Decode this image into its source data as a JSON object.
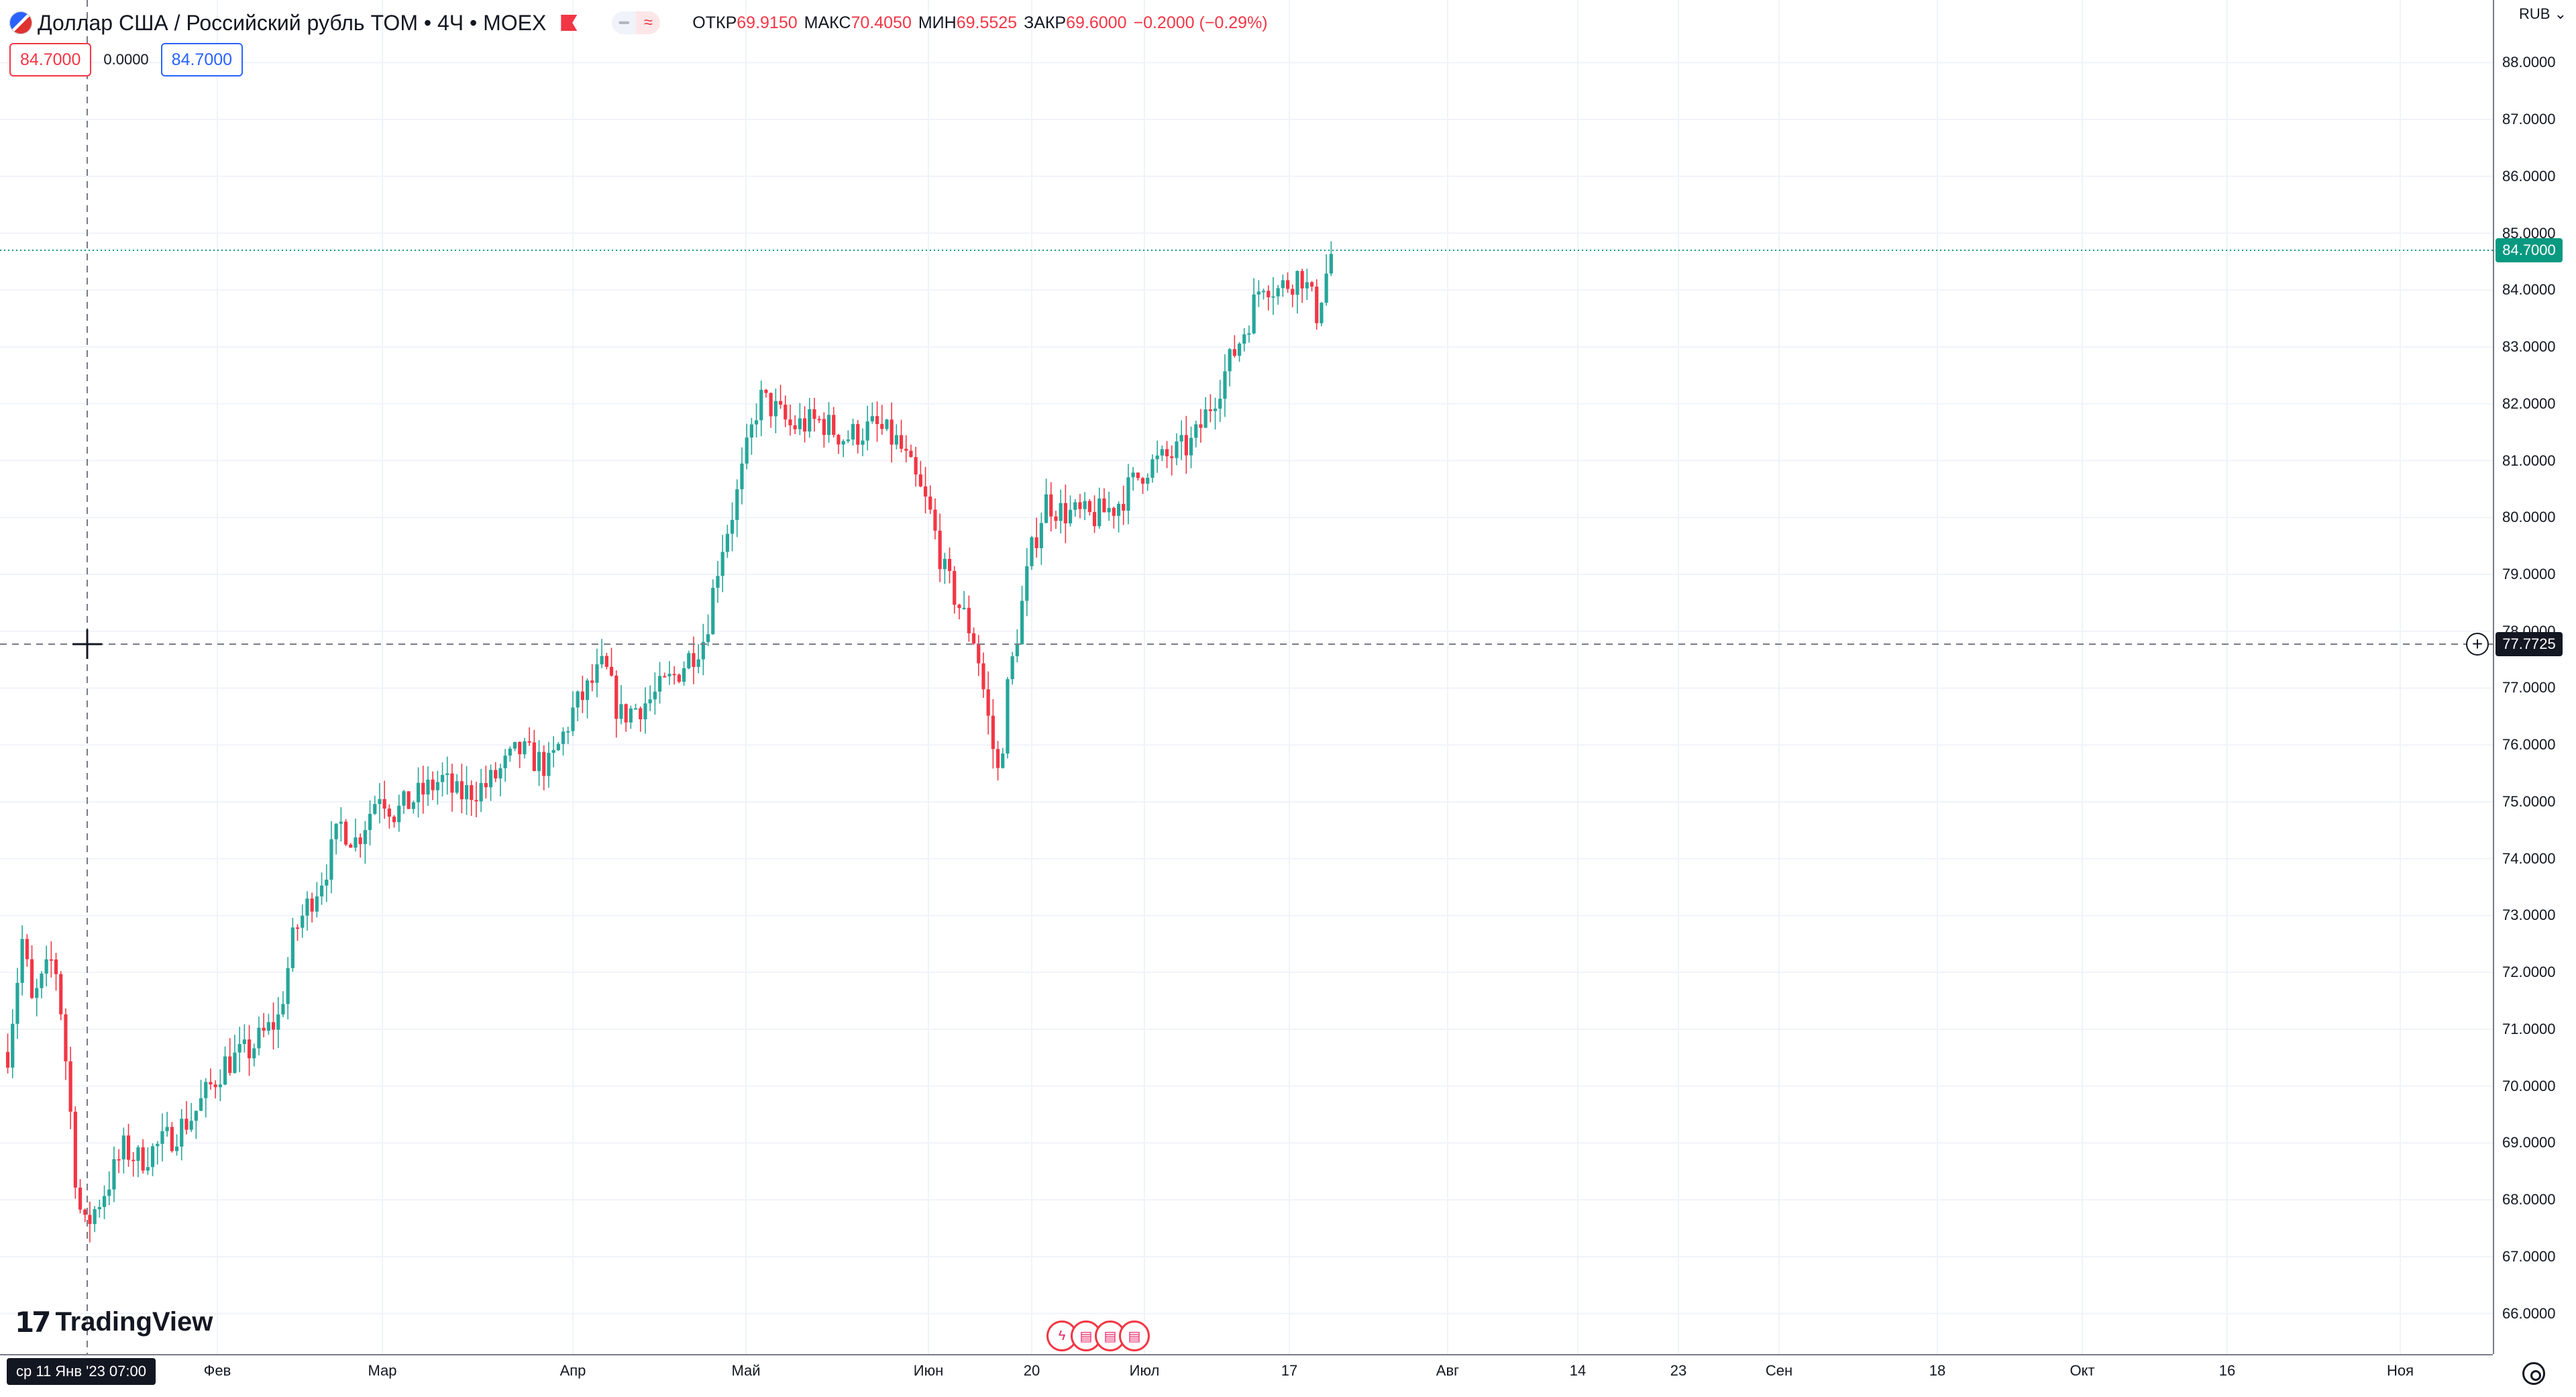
{
  "header": {
    "title": "Доллар США / Российский рубль TOM • 4Ч • MOEX",
    "ohlc": [
      {
        "label": "ОТКР",
        "value": "69.9150"
      },
      {
        "label": "МАКС",
        "value": "70.4050"
      },
      {
        "label": "МИН",
        "value": "69.5525"
      },
      {
        "label": "ЗАКР",
        "value": "69.6000"
      }
    ],
    "change": "−0.2000 (−0.29%)"
  },
  "toolbar": {
    "price_red": "84.7000",
    "spread": "0.0000",
    "price_blue": "84.7000"
  },
  "axis": {
    "currency": "RUB",
    "crosshair_date": "ср 11 Янв '23   07:00"
  },
  "brand": {
    "logo_text": "TradingView"
  },
  "colors": {
    "up": "#26a69a",
    "down": "#f23645",
    "last_price": "#089981",
    "grid": "#f0f3fa"
  },
  "chart_data": {
    "type": "candlestick",
    "title": "Доллар США / Российский рубль TOM • 4Ч • MOEX",
    "interval": "4H",
    "ylim": [
      65.5,
      88.7
    ],
    "y_ticks": [
      "88.0000",
      "87.0000",
      "86.0000",
      "85.0000",
      "84.0000",
      "83.0000",
      "82.0000",
      "81.0000",
      "80.0000",
      "79.0000",
      "78.0000",
      "77.0000",
      "76.0000",
      "75.0000",
      "74.0000",
      "73.0000",
      "72.0000",
      "71.0000",
      "70.0000",
      "69.0000",
      "68.0000",
      "67.0000",
      "66.0000"
    ],
    "x_ticks": [
      "Фев",
      "Мар",
      "Апр",
      "Май",
      "Июн",
      "20",
      "Июл",
      "17",
      "Авг",
      "14",
      "23",
      "Сен",
      "18",
      "Окт",
      "16",
      "Ноя"
    ],
    "last_price": "84.7000",
    "crosshair_price": "77.7725",
    "close_path": [
      [
        "2023-01-03",
        70.6
      ],
      [
        "2023-01-05",
        72.7
      ],
      [
        "2023-01-06",
        71.4
      ],
      [
        "2023-01-09",
        72.3
      ],
      [
        "2023-01-10",
        71.2
      ],
      [
        "2023-01-11",
        69.7
      ],
      [
        "2023-01-12",
        68.0
      ],
      [
        "2023-01-13",
        67.5
      ],
      [
        "2023-01-16",
        68.3
      ],
      [
        "2023-01-18",
        68.9
      ],
      [
        "2023-01-20",
        68.7
      ],
      [
        "2023-01-24",
        69.1
      ],
      [
        "2023-01-27",
        69.5
      ],
      [
        "2023-01-31",
        70.4
      ],
      [
        "2023-02-03",
        70.6
      ],
      [
        "2023-02-07",
        71.2
      ],
      [
        "2023-02-09",
        72.7
      ],
      [
        "2023-02-13",
        73.8
      ],
      [
        "2023-02-15",
        74.6
      ],
      [
        "2023-02-17",
        74.3
      ],
      [
        "2023-02-20",
        75.2
      ],
      [
        "2023-02-22",
        74.8
      ],
      [
        "2023-02-24",
        75.0
      ],
      [
        "2023-02-28",
        75.4
      ],
      [
        "2023-03-02",
        75.1
      ],
      [
        "2023-03-06",
        75.3
      ],
      [
        "2023-03-10",
        75.9
      ],
      [
        "2023-03-14",
        75.6
      ],
      [
        "2023-03-17",
        76.6
      ],
      [
        "2023-03-21",
        77.4
      ],
      [
        "2023-03-23",
        76.5
      ],
      [
        "2023-03-27",
        76.8
      ],
      [
        "2023-03-30",
        77.2
      ],
      [
        "2023-04-03",
        77.9
      ],
      [
        "2023-04-05",
        79.4
      ],
      [
        "2023-04-07",
        80.3
      ],
      [
        "2023-04-10",
        82.1
      ],
      [
        "2023-04-12",
        81.9
      ],
      [
        "2023-04-14",
        81.6
      ],
      [
        "2023-04-18",
        81.7
      ],
      [
        "2023-04-21",
        81.4
      ],
      [
        "2023-04-25",
        81.6
      ],
      [
        "2023-04-28",
        81.3
      ],
      [
        "2023-05-02",
        80.1
      ],
      [
        "2023-05-04",
        79.0
      ],
      [
        "2023-05-08",
        77.8
      ],
      [
        "2023-05-10",
        76.1
      ],
      [
        "2023-05-11",
        75.4
      ],
      [
        "2023-05-12",
        76.9
      ],
      [
        "2023-05-15",
        79.3
      ],
      [
        "2023-05-17",
        80.3
      ],
      [
        "2023-05-19",
        80.1
      ],
      [
        "2023-05-23",
        80.0
      ],
      [
        "2023-05-26",
        80.2
      ],
      [
        "2023-05-30",
        80.9
      ],
      [
        "2023-06-01",
        81.0
      ],
      [
        "2023-06-05",
        81.3
      ],
      [
        "2023-06-08",
        82.2
      ],
      [
        "2023-06-12",
        83.4
      ],
      [
        "2023-06-14",
        84.2
      ],
      [
        "2023-06-16",
        84.0
      ],
      [
        "2023-06-19",
        84.3
      ],
      [
        "2023-06-21",
        83.6
      ],
      [
        "2023-06-23",
        84.7
      ]
    ],
    "date_range": [
      "2023-01-02",
      "2023-11-15"
    ]
  }
}
